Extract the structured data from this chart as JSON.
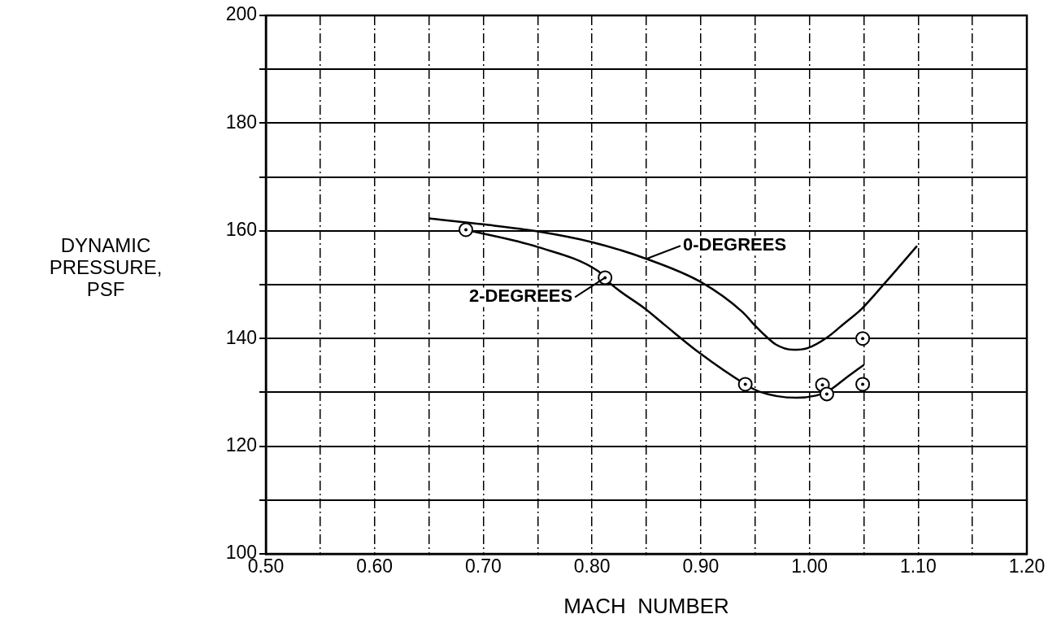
{
  "chart_data": {
    "type": "line",
    "xlabel": "MACH  NUMBER",
    "ylabel": "DYNAMIC\nPRESSURE,\nPSF",
    "xlim": [
      0.5,
      1.2
    ],
    "ylim": [
      100,
      200
    ],
    "xticks": [
      {
        "value": 0.5,
        "label": "0.50"
      },
      {
        "value": 0.55,
        "label": null
      },
      {
        "value": 0.6,
        "label": "0.60"
      },
      {
        "value": 0.65,
        "label": null
      },
      {
        "value": 0.7,
        "label": "0.70"
      },
      {
        "value": 0.75,
        "label": null
      },
      {
        "value": 0.8,
        "label": "0.80"
      },
      {
        "value": 0.85,
        "label": null
      },
      {
        "value": 0.9,
        "label": "0.90"
      },
      {
        "value": 0.95,
        "label": null
      },
      {
        "value": 1.0,
        "label": "1.00"
      },
      {
        "value": 1.05,
        "label": null
      },
      {
        "value": 1.1,
        "label": "1.10"
      },
      {
        "value": 1.15,
        "label": null
      },
      {
        "value": 1.2,
        "label": "1.20"
      }
    ],
    "yticks": [
      100,
      {
        "value": 110,
        "label": null
      },
      120,
      {
        "value": 130,
        "label": null
      },
      140,
      {
        "value": 150,
        "label": null
      },
      160,
      {
        "value": 170,
        "label": null
      },
      180,
      {
        "value": 190,
        "label": null
      },
      200
    ],
    "grid": true,
    "series": [
      {
        "name": "0-DEGREES",
        "color": "#000000",
        "marker": "none",
        "x": [
          0.65,
          0.7,
          0.75,
          0.8,
          0.85,
          0.9,
          0.938,
          0.95,
          0.959,
          0.969,
          0.985,
          0.998,
          1.017,
          1.032,
          1.048,
          1.069,
          1.099
        ],
        "values": [
          162.3,
          161.2,
          159.9,
          157.9,
          154.8,
          150.5,
          145,
          142.4,
          140.6,
          138.9,
          137.9,
          138.2,
          140.3,
          142.8,
          145.5,
          150.2,
          157.2
        ]
      },
      {
        "name": "2-DEGREES",
        "color": "#000000",
        "marker": "none",
        "x": [
          0.684,
          0.75,
          0.805,
          0.812,
          0.817,
          0.849,
          0.867,
          0.899,
          0.941,
          0.953,
          0.988,
          1.006,
          1.017,
          1.035,
          1.05
        ],
        "values": [
          160.2,
          157,
          152.6,
          151.3,
          150.2,
          145.5,
          142.5,
          137.3,
          131.5,
          130.2,
          129,
          129.4,
          130.2,
          132.9,
          135.1
        ]
      },
      {
        "type": "scatter",
        "color": "#000000",
        "marker": "circle",
        "x": [
          0.684,
          0.812,
          0.941,
          1.012,
          1.016,
          1.049,
          1.049
        ],
        "values": [
          160.2,
          151.3,
          131.5,
          131.4,
          129.7,
          131.5,
          140
        ]
      }
    ]
  }
}
